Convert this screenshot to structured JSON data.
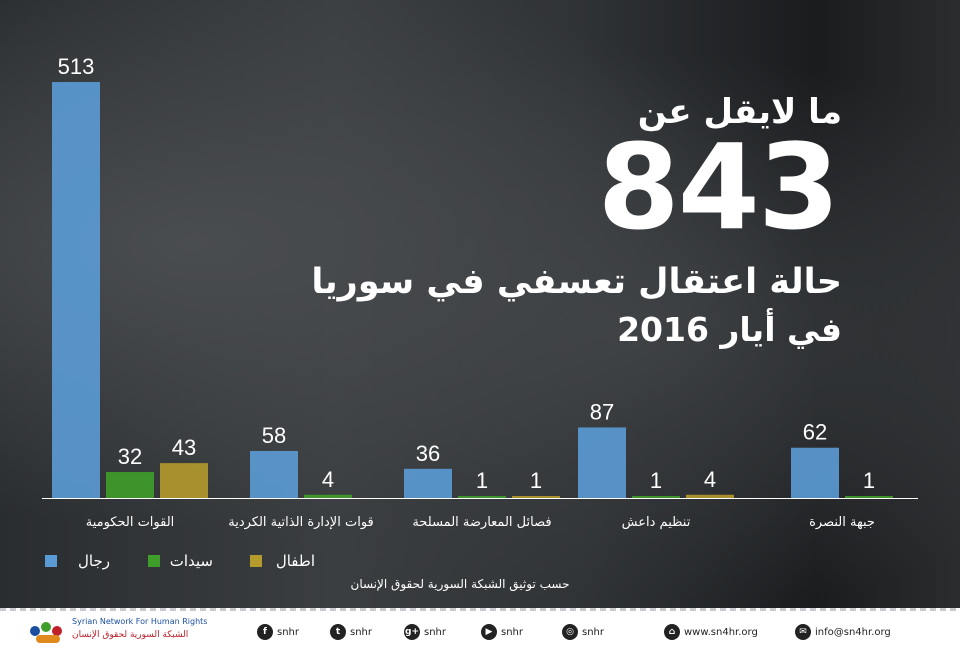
{
  "headline": {
    "line1": "ما لايقل عن",
    "number": "843",
    "line3": "حالة اعتقال تعسفي في سوريا",
    "line4": "في أيار 2016"
  },
  "chart_data": {
    "type": "bar",
    "categories": [
      "القوات الحكومية",
      "قوات الإدارة الذاتية الكردية",
      "فصائل المعارضة المسلحة",
      "تنظيم داعش",
      "جبهة النصرة"
    ],
    "series": [
      {
        "name": "رجال",
        "color": "#5b9bd5",
        "values": [
          513,
          58,
          36,
          87,
          62
        ]
      },
      {
        "name": "سيدات",
        "color": "#3f9e2a",
        "values": [
          32,
          4,
          1,
          1,
          1
        ]
      },
      {
        "name": "اطفال",
        "color": "#b59a2e",
        "values": [
          43,
          null,
          1,
          4,
          null
        ]
      }
    ],
    "data_labels": [
      [
        "513",
        "32",
        "43"
      ],
      [
        "58",
        "4",
        null
      ],
      [
        "36",
        "1",
        "1"
      ],
      [
        "87",
        "1",
        "4"
      ],
      [
        "62",
        "1",
        null
      ]
    ],
    "ylim": [
      0,
      513
    ],
    "grid": false,
    "legend": "bottom-left"
  },
  "source": "حسب توثيق الشبكة السورية لحقوق الإنسان",
  "footer": {
    "logo_en": "Syrian Network For Human Rights",
    "logo_ar": "الشبكة السورية لحقوق الإنسان",
    "links": [
      {
        "icon": "facebook-icon",
        "glyph": "f",
        "label": "snhr"
      },
      {
        "icon": "twitter-icon",
        "glyph": "t",
        "label": "snhr"
      },
      {
        "icon": "google-plus-icon",
        "glyph": "g+",
        "label": "snhr"
      },
      {
        "icon": "youtube-icon",
        "glyph": "▶",
        "label": "snhr"
      },
      {
        "icon": "instagram-icon",
        "glyph": "◎",
        "label": "snhr"
      },
      {
        "icon": "home-icon",
        "glyph": "⌂",
        "label": "www.sn4hr.org"
      },
      {
        "icon": "email-icon",
        "glyph": "✉",
        "label": "info@sn4hr.org"
      }
    ]
  }
}
